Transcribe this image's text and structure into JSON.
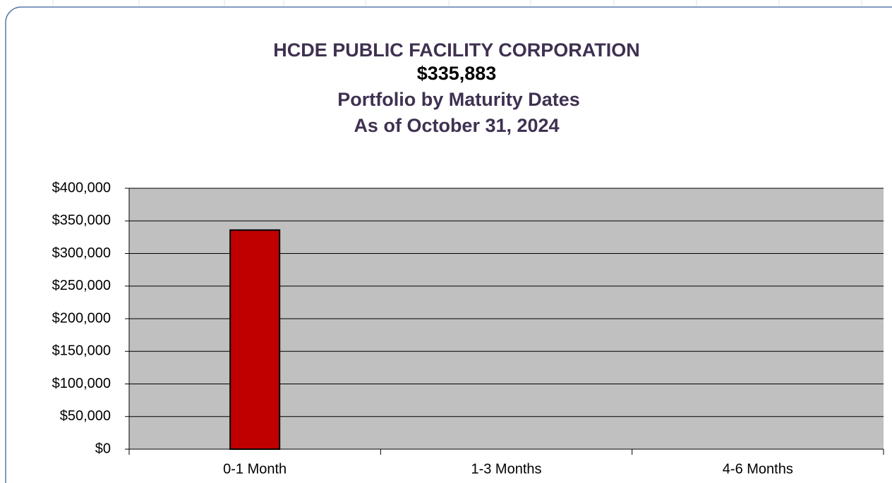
{
  "chart_data": {
    "type": "bar",
    "title": "HCDE PUBLIC FACILITY CORPORATION",
    "subtitle": [
      "$335,883",
      "Portfolio by Maturity Dates",
      "As of  October 31, 2024"
    ],
    "categories": [
      "0-1 Month",
      "1-3 Months",
      "4-6 Months"
    ],
    "values": [
      335883,
      0,
      0
    ],
    "color": "#c00000",
    "ylim": [
      0,
      400000
    ],
    "yticks": [
      {
        "value": 0,
        "label": "$0"
      },
      {
        "value": 50000,
        "label": "$50,000"
      },
      {
        "value": 100000,
        "label": "$100,000"
      },
      {
        "value": 150000,
        "label": "$150,000"
      },
      {
        "value": 200000,
        "label": "$200,000"
      },
      {
        "value": 250000,
        "label": "$250,000"
      },
      {
        "value": 300000,
        "label": "$300,000"
      },
      {
        "value": 350000,
        "label": "$350,000"
      },
      {
        "value": 400000,
        "label": "$400,000"
      }
    ],
    "grid": true
  }
}
